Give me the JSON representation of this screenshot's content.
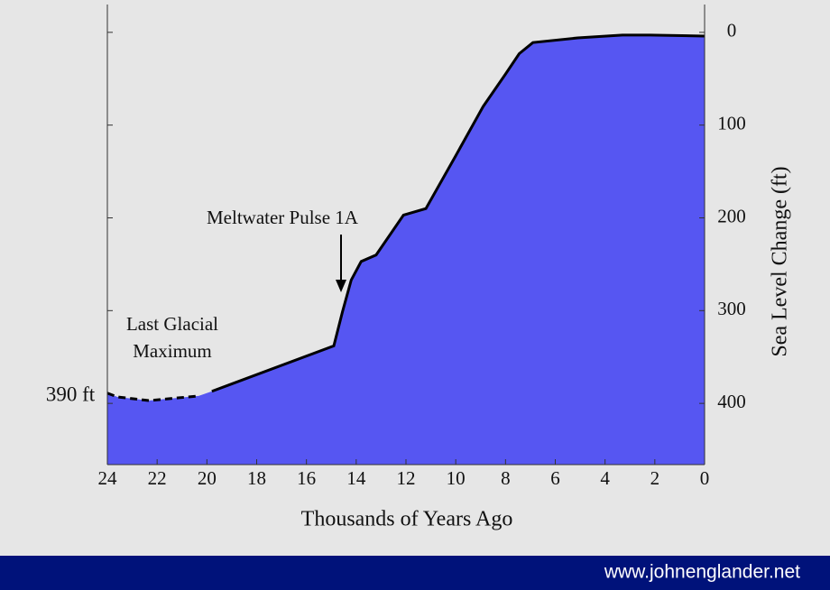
{
  "chart_data": {
    "type": "area",
    "x_label": "Thousands of Years Ago",
    "y_label": "Sea Level Change (ft)",
    "xlim": [
      24,
      0
    ],
    "xticks": [
      24,
      22,
      20,
      18,
      16,
      14,
      12,
      10,
      8,
      6,
      4,
      2,
      0
    ],
    "ylim": [
      466,
      -30
    ],
    "yticks": [
      0,
      100,
      200,
      300,
      400
    ],
    "area_color": "#5656f2",
    "line_color": "#000000",
    "segments": [
      {
        "style": "dashed",
        "x": [
          24,
          23.6,
          22.33,
          20.33
        ],
        "values": [
          389,
          393,
          397,
          392
        ]
      },
      {
        "style": "solid",
        "x": [
          19.8,
          14.9,
          14.55,
          14.2,
          13.8,
          13.2,
          12.1,
          11.2,
          10.0,
          8.9,
          8.0,
          7.45,
          6.9,
          5.1,
          3.3,
          2.2,
          0
        ],
        "values": [
          387,
          338,
          301,
          267,
          247,
          240,
          197,
          190,
          133,
          80,
          45,
          23,
          11,
          6,
          3,
          3,
          4
        ]
      }
    ],
    "annotations": [
      {
        "text": [
          "Meltwater Pulse 1A"
        ]
      },
      {
        "text": [
          "Last Glacial",
          "Maximum"
        ]
      },
      {
        "text": [
          "390 ft"
        ]
      }
    ]
  },
  "footer": {
    "text": "www.johnenglander.net"
  }
}
